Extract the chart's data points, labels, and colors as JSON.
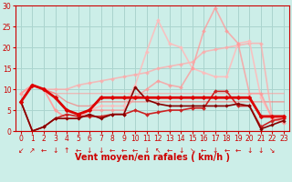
{
  "bg_color": "#cceee8",
  "grid_color": "#aad4ce",
  "xlabel": "Vent moyen/en rafales ( km/h )",
  "xlim": [
    -0.5,
    23.5
  ],
  "ylim": [
    0,
    30
  ],
  "yticks": [
    0,
    5,
    10,
    15,
    20,
    25,
    30
  ],
  "xticks": [
    0,
    1,
    2,
    3,
    4,
    5,
    6,
    7,
    8,
    9,
    10,
    11,
    12,
    13,
    14,
    15,
    16,
    17,
    18,
    19,
    20,
    21,
    22,
    23
  ],
  "lines": [
    {
      "x": [
        0,
        1,
        2,
        3,
        4,
        5,
        6,
        7,
        8,
        9,
        10,
        11,
        12,
        13,
        14,
        15,
        16,
        17,
        18,
        19,
        20,
        21,
        22,
        23
      ],
      "y": [
        9,
        11,
        10,
        9,
        9,
        9,
        9,
        9,
        9,
        9,
        9,
        9,
        9,
        9,
        9,
        9,
        9,
        9,
        9,
        9,
        9,
        9,
        9,
        9
      ],
      "color": "#ff9999",
      "alpha": 0.6,
      "lw": 1.0,
      "marker": null
    },
    {
      "x": [
        0,
        1,
        2,
        3,
        4,
        5,
        6,
        7,
        8,
        9,
        10,
        11,
        12,
        13,
        14,
        15,
        16,
        17,
        18,
        19,
        20,
        21,
        22,
        23
      ],
      "y": [
        9,
        11,
        10,
        9,
        7,
        6,
        6,
        7,
        7,
        7,
        7,
        7,
        7,
        7,
        7,
        7,
        7,
        7,
        7,
        7,
        7,
        7,
        7,
        7
      ],
      "color": "#ff6666",
      "alpha": 0.6,
      "lw": 1.0,
      "marker": null
    },
    {
      "x": [
        0,
        1,
        2,
        3,
        4,
        5,
        6,
        7,
        8,
        9,
        10,
        11,
        12,
        13,
        14,
        15,
        16,
        17,
        18,
        19,
        20,
        21,
        22,
        23
      ],
      "y": [
        9,
        11,
        10,
        10,
        10,
        11,
        11.5,
        12,
        12.5,
        13,
        13.5,
        14,
        15,
        15.5,
        16,
        16.5,
        19,
        19.5,
        20,
        20.5,
        21,
        21,
        3,
        3
      ],
      "color": "#ffaaaa",
      "alpha": 0.75,
      "lw": 1.2,
      "marker": "D",
      "ms": 2.0
    },
    {
      "x": [
        0,
        1,
        2,
        3,
        4,
        5,
        6,
        7,
        8,
        9,
        10,
        11,
        12,
        13,
        14,
        15,
        16,
        17,
        18,
        19,
        20,
        21,
        22,
        23
      ],
      "y": [
        9,
        11,
        10,
        5,
        3,
        3,
        5,
        6,
        6,
        6,
        11,
        19,
        26.5,
        21,
        20,
        15,
        14,
        13,
        13,
        21,
        21.5,
        8,
        3,
        2
      ],
      "color": "#ffbbbb",
      "alpha": 0.85,
      "lw": 1.2,
      "marker": "D",
      "ms": 2.0
    },
    {
      "x": [
        0,
        1,
        2,
        3,
        4,
        5,
        6,
        7,
        8,
        9,
        10,
        11,
        12,
        13,
        14,
        15,
        16,
        17,
        18,
        19,
        20,
        21,
        22,
        23
      ],
      "y": [
        9,
        11,
        10,
        5,
        3,
        3,
        5,
        5,
        5,
        5,
        8,
        10,
        12,
        11,
        10.5,
        15,
        24,
        29.5,
        24,
        21,
        9,
        9,
        3,
        2
      ],
      "color": "#ff9999",
      "alpha": 0.75,
      "lw": 1.2,
      "marker": "D",
      "ms": 2.0
    },
    {
      "x": [
        0,
        1,
        2,
        3,
        4,
        5,
        6,
        7,
        8,
        9,
        10,
        11,
        12,
        13,
        14,
        15,
        16,
        17,
        18,
        19,
        20,
        21,
        22,
        23
      ],
      "y": [
        7,
        0,
        1,
        3,
        4,
        3.5,
        3.5,
        3.5,
        4,
        4,
        5,
        4,
        4.5,
        5,
        5,
        5.5,
        5.5,
        9.5,
        9.5,
        6,
        6,
        1,
        2.5,
        3
      ],
      "color": "#cc2222",
      "alpha": 1.0,
      "lw": 1.2,
      "marker": "D",
      "ms": 2.0
    },
    {
      "x": [
        0,
        1,
        2,
        3,
        4,
        5,
        6,
        7,
        8,
        9,
        10,
        11,
        12,
        13,
        14,
        15,
        16,
        17,
        18,
        19,
        20,
        21,
        22,
        23
      ],
      "y": [
        7,
        0,
        1,
        3,
        3,
        3,
        4,
        3,
        4,
        4,
        10.5,
        7.5,
        6.5,
        6,
        6,
        6,
        6,
        6,
        6,
        6.5,
        6,
        0.5,
        1.5,
        2.5
      ],
      "color": "#880000",
      "alpha": 1.0,
      "lw": 1.2,
      "marker": "D",
      "ms": 1.8
    },
    {
      "x": [
        0,
        1,
        2,
        3,
        4,
        5,
        6,
        7,
        8,
        9,
        10,
        11,
        12,
        13,
        14,
        15,
        16,
        17,
        18,
        19,
        20,
        21,
        22,
        23
      ],
      "y": [
        7,
        11,
        10,
        8,
        5,
        4,
        5,
        8,
        8,
        8,
        8,
        8,
        8,
        8,
        8,
        8,
        8,
        8,
        8,
        8,
        8,
        3.5,
        3.5,
        3.5
      ],
      "color": "#dd0000",
      "alpha": 1.0,
      "lw": 2.0,
      "marker": "D",
      "ms": 2.5
    }
  ],
  "arrow_symbols": [
    "↙",
    "↗",
    "←",
    "↓",
    "↑",
    "←",
    "↓",
    "↓",
    "←",
    "←",
    "←",
    "↓",
    "↖",
    "←",
    "↓",
    "↘",
    "←",
    "↓",
    "←",
    "←",
    "↓",
    "↓",
    "↘",
    ""
  ],
  "label_fontsize": 7.0,
  "tick_fontsize": 5.5
}
